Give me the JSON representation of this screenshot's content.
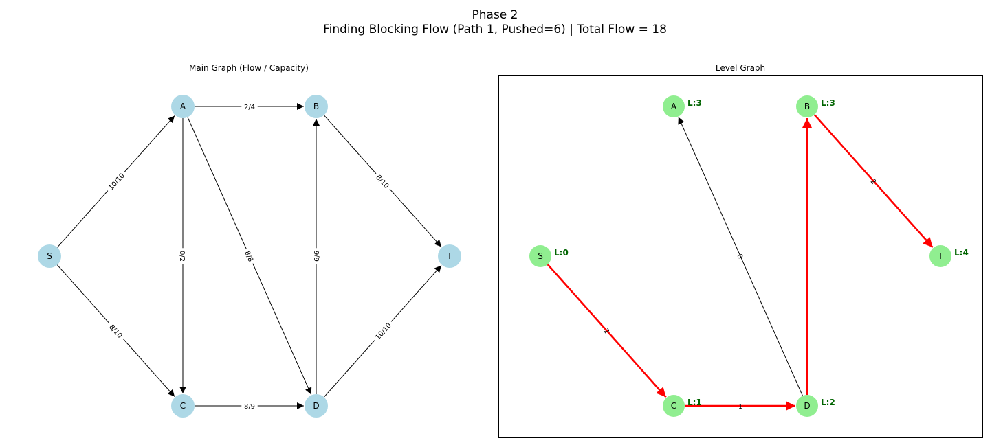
{
  "figure": {
    "title_line1": "Phase 2",
    "title_line2": "Finding Blocking Flow (Path 1, Pushed=6) | Total Flow = 18"
  },
  "colors": {
    "main_node": "#add8e6",
    "level_node": "#90ee90",
    "level_text": "#006400",
    "edge": "#000000",
    "highlight_edge": "#ff0000"
  },
  "main_graph": {
    "title": "Main Graph (Flow / Capacity)",
    "nodes": [
      {
        "id": "S"
      },
      {
        "id": "A"
      },
      {
        "id": "B"
      },
      {
        "id": "C"
      },
      {
        "id": "D"
      },
      {
        "id": "T"
      }
    ],
    "edges": [
      {
        "from": "S",
        "to": "A",
        "label": "10/10"
      },
      {
        "from": "S",
        "to": "C",
        "label": "8/10"
      },
      {
        "from": "A",
        "to": "B",
        "label": "2/4"
      },
      {
        "from": "A",
        "to": "C",
        "label": "0/2"
      },
      {
        "from": "A",
        "to": "D",
        "label": "8/8"
      },
      {
        "from": "B",
        "to": "T",
        "label": "8/10"
      },
      {
        "from": "C",
        "to": "D",
        "label": "8/9"
      },
      {
        "from": "D",
        "to": "B",
        "label": "6/6"
      },
      {
        "from": "D",
        "to": "T",
        "label": "10/10"
      }
    ]
  },
  "level_graph": {
    "title": "Level Graph",
    "nodes": [
      {
        "id": "S",
        "level_label": "L:0"
      },
      {
        "id": "A",
        "level_label": "L:3"
      },
      {
        "id": "B",
        "level_label": "L:3"
      },
      {
        "id": "C",
        "level_label": "L:1"
      },
      {
        "id": "D",
        "level_label": "L:2"
      },
      {
        "id": "T",
        "level_label": "L:4"
      }
    ],
    "edges": [
      {
        "from": "S",
        "to": "C",
        "label": "2",
        "highlighted": true
      },
      {
        "from": "C",
        "to": "D",
        "label": "1",
        "highlighted": true
      },
      {
        "from": "D",
        "to": "B",
        "label": "",
        "highlighted": true
      },
      {
        "from": "D",
        "to": "A",
        "label": "8",
        "highlighted": false
      },
      {
        "from": "B",
        "to": "T",
        "label": "2",
        "highlighted": true
      }
    ]
  }
}
